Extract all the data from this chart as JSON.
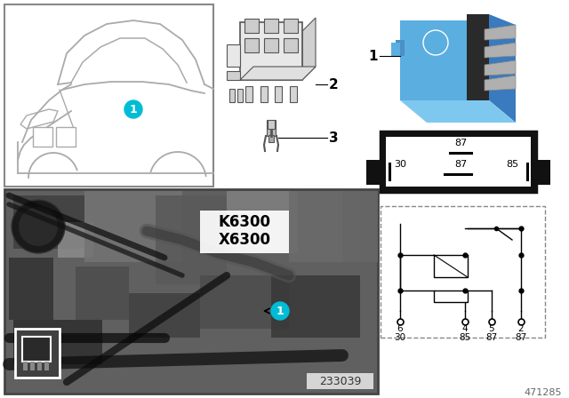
{
  "bg_color": "#ffffff",
  "part_number": "471285",
  "photo_label": "233039",
  "k6300": "K6300",
  "x6300": "X6300",
  "label1_bg": "#00bcd4",
  "label1_text": "1",
  "item2_label": "2",
  "item3_label": "3",
  "relay_blue": "#5baee0",
  "relay_dark": "#1a1a1a",
  "car_line_color": "#aaaaaa",
  "car_box_edge": "#888888",
  "connector_edge": "#555555",
  "connector_face": "#e8e8e8",
  "schematic_line": "#222222",
  "pin_label_font": 7,
  "note_font": 9
}
